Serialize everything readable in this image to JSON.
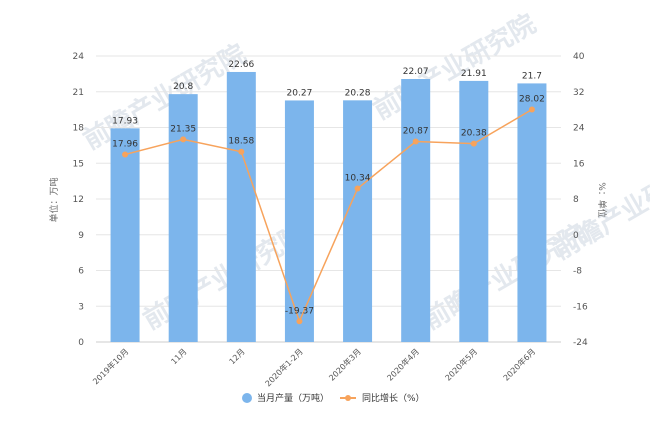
{
  "chart_data": {
    "type": "bar",
    "categories": [
      "2019年10月",
      "11月",
      "12月",
      "2020年1-2月",
      "2020年3月",
      "2020年4月",
      "2020年5月",
      "2020年6月"
    ],
    "series": [
      {
        "name": "当月产量（万吨）",
        "type": "bar",
        "axis": "left",
        "values": [
          17.93,
          20.8,
          22.66,
          20.27,
          20.28,
          22.07,
          21.91,
          21.7
        ],
        "labels": [
          "17.93",
          "20.8",
          "22.66",
          "20.27",
          "20.28",
          "22.07",
          "21.91",
          "21.7"
        ]
      },
      {
        "name": "同比增长（%）",
        "type": "line",
        "axis": "right",
        "values": [
          17.96,
          21.35,
          18.58,
          -19.37,
          10.34,
          20.87,
          20.38,
          28.02
        ],
        "labels": [
          "17.96",
          "21.35",
          "18.58",
          "-19.37",
          "10.34",
          "20.87",
          "20.38",
          "28.02"
        ]
      }
    ],
    "ylabel": "单位：万吨",
    "y2label": "%：单位",
    "ylim": [
      0,
      24
    ],
    "y2lim": [
      -24,
      40
    ],
    "yticks": [
      "0",
      "3",
      "6",
      "9",
      "12",
      "15",
      "18",
      "21",
      "24"
    ],
    "y2ticks": [
      "-24",
      "-16",
      "-8",
      "0",
      "8",
      "16",
      "24",
      "32",
      "40"
    ],
    "grid": "horizontal",
    "legend_position": "bottom-center",
    "colors": {
      "bar": "#7cb5ec",
      "line": "#f7a35c",
      "grid": "#e6e6e6",
      "axis": "#cccccc"
    }
  },
  "watermark": {
    "text": "前瞻产业研究院"
  }
}
